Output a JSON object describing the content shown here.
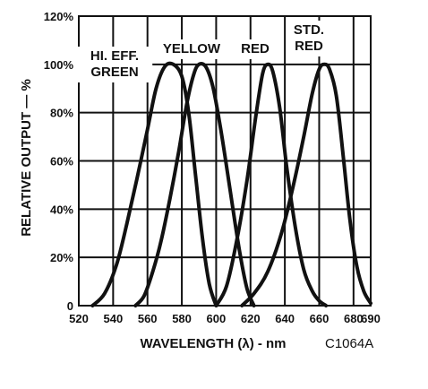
{
  "chart_data": {
    "type": "line",
    "title": "",
    "xlabel": "WAVELENGTH (λ) - nm",
    "ylabel": "RELATIVE OUTPUT — %",
    "caption": "C1064A",
    "xlim": [
      520,
      690
    ],
    "ylim": [
      0,
      120
    ],
    "x_ticks": [
      520,
      540,
      560,
      580,
      600,
      620,
      640,
      660,
      680,
      690
    ],
    "x_tick_labels": [
      "520",
      "540",
      "560",
      "580",
      "600",
      "620",
      "640",
      "660",
      "680",
      "690"
    ],
    "y_ticks": [
      0,
      20,
      40,
      60,
      80,
      100,
      120
    ],
    "y_tick_labels": [
      "0",
      "20%",
      "40%",
      "60%",
      "80%",
      "100%",
      "120%"
    ],
    "grid": true,
    "series": [
      {
        "name": "HI. EFF. GREEN",
        "label_lines": [
          "HI. EFF.",
          "GREEN"
        ],
        "peak": 575,
        "x": [
          528,
          535,
          542,
          548,
          554,
          560,
          565,
          570,
          575,
          580,
          584,
          588,
          592,
          596,
          600
        ],
        "values": [
          0,
          5,
          17,
          34,
          53,
          73,
          90,
          99,
          100,
          95,
          80,
          54,
          28,
          9,
          0
        ]
      },
      {
        "name": "YELLOW",
        "label_lines": [
          "YELLOW"
        ],
        "peak": 590,
        "x": [
          553,
          558,
          563,
          568,
          573,
          578,
          583,
          587,
          590,
          594,
          598,
          602,
          606,
          610,
          614,
          618,
          622
        ],
        "values": [
          0,
          4,
          14,
          27,
          44,
          63,
          84,
          96,
          100,
          99,
          91,
          76,
          58,
          39,
          21,
          7,
          0
        ]
      },
      {
        "name": "RED",
        "label_lines": [
          "RED"
        ],
        "peak": 630,
        "x": [
          600,
          606,
          612,
          618,
          623,
          627,
          630,
          633,
          637,
          641,
          646,
          651,
          656,
          660,
          664
        ],
        "values": [
          0,
          8,
          27,
          52,
          78,
          96,
          100,
          97,
          82,
          58,
          33,
          15,
          6,
          2,
          0
        ]
      },
      {
        "name": "STD. RED",
        "label_lines": [
          "STD.",
          "RED"
        ],
        "peak": 663,
        "x": [
          615,
          622,
          630,
          638,
          645,
          651,
          656,
          660,
          663,
          666,
          670,
          674,
          678,
          682,
          686,
          690
        ],
        "values": [
          0,
          5,
          14,
          30,
          50,
          70,
          88,
          98,
          100,
          98,
          87,
          62,
          35,
          16,
          6,
          1
        ]
      }
    ]
  }
}
